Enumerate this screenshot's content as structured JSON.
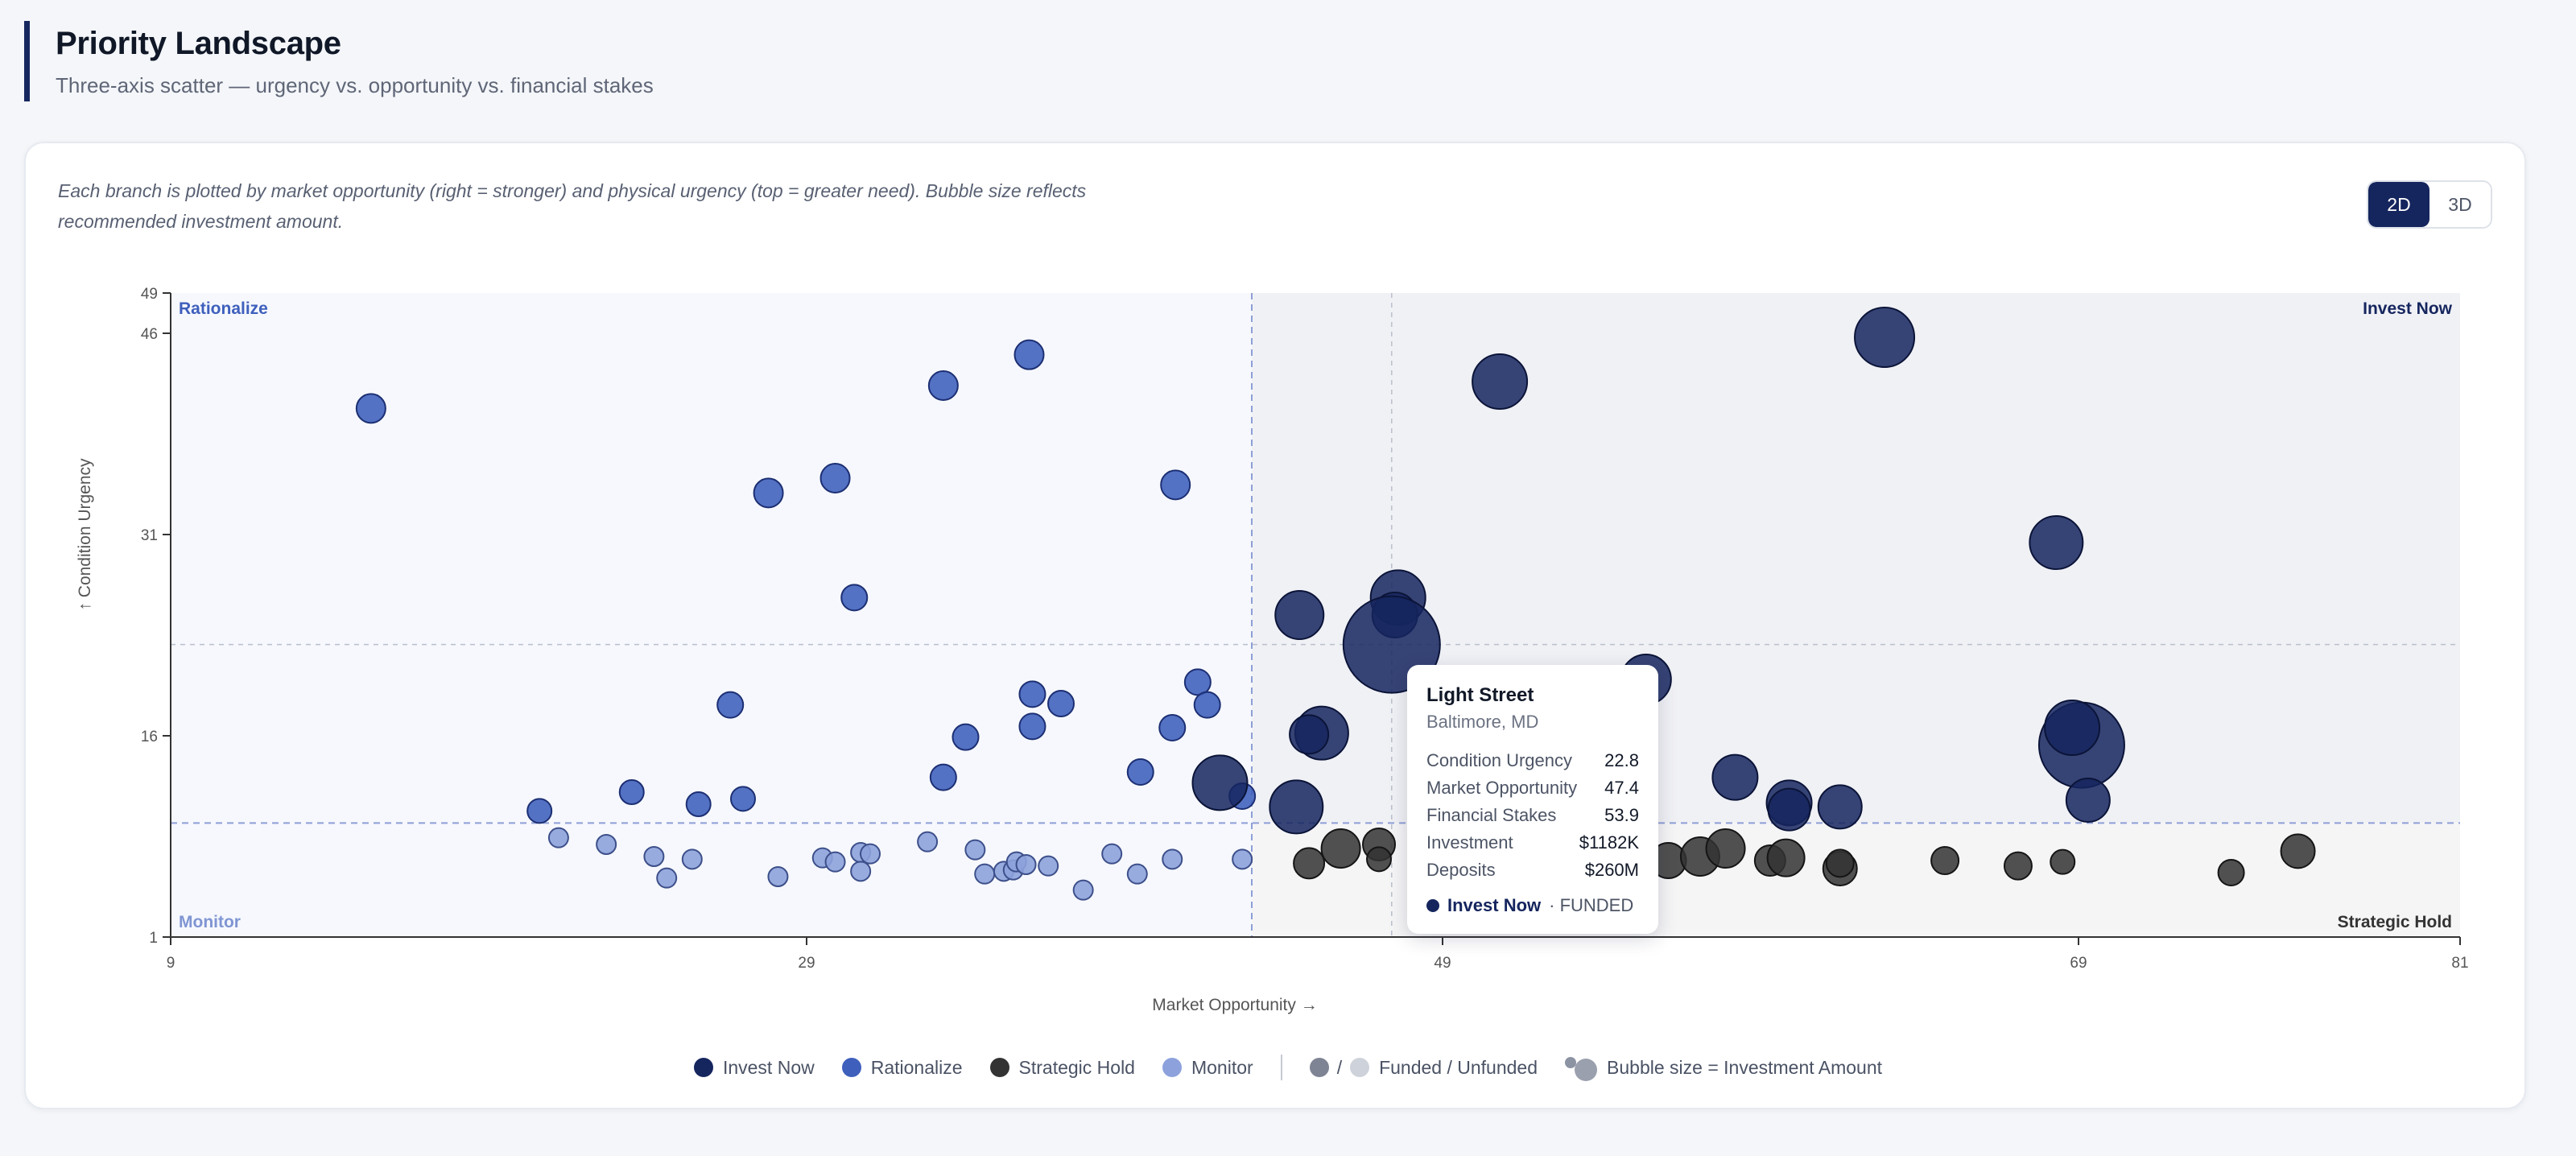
{
  "header": {
    "title": "Priority Landscape",
    "subtitle": "Three-axis scatter — urgency vs. opportunity vs. financial stakes"
  },
  "description": "Each branch is plotted by market opportunity (right = stronger) and physical urgency (top = greater need). Bubble size reflects recommended investment amount.",
  "view_toggle": {
    "options": [
      "2D",
      "3D"
    ],
    "selected": "2D"
  },
  "colors": {
    "invest_now": "#15255e",
    "rationalize": "#3e5fbc",
    "strategic_hold": "#333333",
    "monitor": "#8da2dc"
  },
  "tooltip": {
    "name": "Light Street",
    "location": "Baltimore, MD",
    "rows": [
      {
        "label": "Condition Urgency",
        "value": "22.8"
      },
      {
        "label": "Market Opportunity",
        "value": "47.4"
      },
      {
        "label": "Financial Stakes",
        "value": "53.9"
      },
      {
        "label": "Investment",
        "value": "$1182K"
      },
      {
        "label": "Deposits",
        "value": "$260M"
      }
    ],
    "quadrant": "Invest Now",
    "status": "· FUNDED"
  },
  "legend": {
    "items": [
      {
        "label": "Invest Now",
        "color": "#15255e"
      },
      {
        "label": "Rationalize",
        "color": "#3e5fbc"
      },
      {
        "label": "Strategic Hold",
        "color": "#333333"
      },
      {
        "label": "Monitor",
        "color": "#8da2dc"
      }
    ],
    "funded_label": "Funded / Unfunded",
    "funded_colors": [
      "#7e8494",
      "#ced2da"
    ],
    "size_label": "Bubble size = Investment Amount"
  },
  "chart_data": {
    "type": "scatter",
    "xlabel": "Market Opportunity →",
    "ylabel": "↑ Condition Urgency",
    "xlim": [
      9,
      81
    ],
    "ylim": [
      1,
      49
    ],
    "xticks": [
      9,
      29,
      49,
      69,
      81
    ],
    "yticks": [
      1,
      16,
      31,
      46,
      49
    ],
    "x_threshold": 43,
    "y_threshold": 9.5,
    "quadrant_labels": {
      "top_left": "Rationalize",
      "top_right": "Invest Now",
      "bottom_left": "Monitor",
      "bottom_right": "Strategic Hold"
    },
    "highlight": {
      "x": 47.4,
      "y": 22.8
    },
    "series": [
      {
        "name": "Invest Now",
        "points": [
          {
            "x": 62.9,
            "y": 45.7,
            "r": 37
          },
          {
            "x": 50.8,
            "y": 42.4,
            "r": 34
          },
          {
            "x": 68.3,
            "y": 30.4,
            "r": 33
          },
          {
            "x": 69.1,
            "y": 15.3,
            "r": 53
          },
          {
            "x": 68.8,
            "y": 16.6,
            "r": 34
          },
          {
            "x": 69.3,
            "y": 11.2,
            "r": 27
          },
          {
            "x": 47.6,
            "y": 26.3,
            "r": 34
          },
          {
            "x": 44.5,
            "y": 25.0,
            "r": 30
          },
          {
            "x": 47.5,
            "y": 25.0,
            "r": 28
          },
          {
            "x": 47.4,
            "y": 22.8,
            "r": 60
          },
          {
            "x": 55.4,
            "y": 20.2,
            "r": 31
          },
          {
            "x": 45.2,
            "y": 16.2,
            "r": 33
          },
          {
            "x": 44.8,
            "y": 16.1,
            "r": 24
          },
          {
            "x": 42.0,
            "y": 12.5,
            "r": 34
          },
          {
            "x": 44.4,
            "y": 10.7,
            "r": 33
          },
          {
            "x": 58.2,
            "y": 12.9,
            "r": 28
          },
          {
            "x": 59.9,
            "y": 11.0,
            "r": 28
          },
          {
            "x": 59.9,
            "y": 10.5,
            "r": 26
          },
          {
            "x": 61.5,
            "y": 10.7,
            "r": 27
          }
        ]
      },
      {
        "name": "Rationalize",
        "points": [
          {
            "x": 15.3,
            "y": 40.4,
            "r": 18
          },
          {
            "x": 27.8,
            "y": 34.1,
            "r": 18
          },
          {
            "x": 29.9,
            "y": 35.2,
            "r": 18
          },
          {
            "x": 33.3,
            "y": 42.1,
            "r": 18
          },
          {
            "x": 36.0,
            "y": 44.4,
            "r": 18
          },
          {
            "x": 40.6,
            "y": 34.7,
            "r": 18
          },
          {
            "x": 30.5,
            "y": 26.3,
            "r": 16
          },
          {
            "x": 26.6,
            "y": 18.3,
            "r": 16
          },
          {
            "x": 36.1,
            "y": 19.1,
            "r": 16
          },
          {
            "x": 37.0,
            "y": 18.4,
            "r": 16
          },
          {
            "x": 41.3,
            "y": 20.0,
            "r": 16
          },
          {
            "x": 41.6,
            "y": 18.3,
            "r": 16
          },
          {
            "x": 40.5,
            "y": 16.6,
            "r": 16
          },
          {
            "x": 36.1,
            "y": 16.7,
            "r": 16
          },
          {
            "x": 34.0,
            "y": 15.9,
            "r": 16
          },
          {
            "x": 39.5,
            "y": 13.3,
            "r": 16
          },
          {
            "x": 33.3,
            "y": 12.9,
            "r": 16
          },
          {
            "x": 42.7,
            "y": 11.5,
            "r": 16
          },
          {
            "x": 20.6,
            "y": 10.4,
            "r": 15
          },
          {
            "x": 23.5,
            "y": 11.8,
            "r": 15
          },
          {
            "x": 25.6,
            "y": 10.9,
            "r": 15
          },
          {
            "x": 27.0,
            "y": 11.3,
            "r": 15
          }
        ]
      },
      {
        "name": "Strategic Hold",
        "points": [
          {
            "x": 44.8,
            "y": 6.5,
            "r": 19
          },
          {
            "x": 45.8,
            "y": 7.6,
            "r": 24
          },
          {
            "x": 47.0,
            "y": 7.9,
            "r": 20
          },
          {
            "x": 47.0,
            "y": 6.8,
            "r": 15
          },
          {
            "x": 56.1,
            "y": 6.7,
            "r": 22
          },
          {
            "x": 57.1,
            "y": 7.0,
            "r": 24
          },
          {
            "x": 57.9,
            "y": 7.6,
            "r": 24
          },
          {
            "x": 59.3,
            "y": 6.7,
            "r": 19
          },
          {
            "x": 59.8,
            "y": 6.9,
            "r": 23
          },
          {
            "x": 61.5,
            "y": 6.1,
            "r": 21
          },
          {
            "x": 61.5,
            "y": 6.5,
            "r": 17
          },
          {
            "x": 64.8,
            "y": 6.7,
            "r": 17
          },
          {
            "x": 67.1,
            "y": 6.3,
            "r": 17
          },
          {
            "x": 68.5,
            "y": 6.6,
            "r": 15
          },
          {
            "x": 73.8,
            "y": 5.8,
            "r": 16
          },
          {
            "x": 75.9,
            "y": 7.4,
            "r": 21
          }
        ]
      },
      {
        "name": "Monitor",
        "points": [
          {
            "x": 21.2,
            "y": 8.4,
            "r": 12
          },
          {
            "x": 22.7,
            "y": 7.9,
            "r": 12
          },
          {
            "x": 24.2,
            "y": 7.0,
            "r": 12
          },
          {
            "x": 24.6,
            "y": 5.4,
            "r": 12
          },
          {
            "x": 25.4,
            "y": 6.8,
            "r": 12
          },
          {
            "x": 28.1,
            "y": 5.5,
            "r": 12
          },
          {
            "x": 29.5,
            "y": 6.9,
            "r": 12
          },
          {
            "x": 29.9,
            "y": 6.6,
            "r": 12
          },
          {
            "x": 30.7,
            "y": 7.3,
            "r": 12
          },
          {
            "x": 30.7,
            "y": 5.9,
            "r": 12
          },
          {
            "x": 31.0,
            "y": 7.2,
            "r": 12
          },
          {
            "x": 32.8,
            "y": 8.1,
            "r": 12
          },
          {
            "x": 34.3,
            "y": 7.5,
            "r": 12
          },
          {
            "x": 34.6,
            "y": 5.7,
            "r": 12
          },
          {
            "x": 35.2,
            "y": 5.9,
            "r": 12
          },
          {
            "x": 35.5,
            "y": 6.0,
            "r": 12
          },
          {
            "x": 35.6,
            "y": 6.6,
            "r": 12
          },
          {
            "x": 35.9,
            "y": 6.4,
            "r": 12
          },
          {
            "x": 36.6,
            "y": 6.3,
            "r": 12
          },
          {
            "x": 37.7,
            "y": 4.5,
            "r": 12
          },
          {
            "x": 38.6,
            "y": 7.2,
            "r": 12
          },
          {
            "x": 39.4,
            "y": 5.7,
            "r": 12
          },
          {
            "x": 40.5,
            "y": 6.8,
            "r": 12
          },
          {
            "x": 42.7,
            "y": 6.8,
            "r": 12
          }
        ]
      }
    ]
  }
}
